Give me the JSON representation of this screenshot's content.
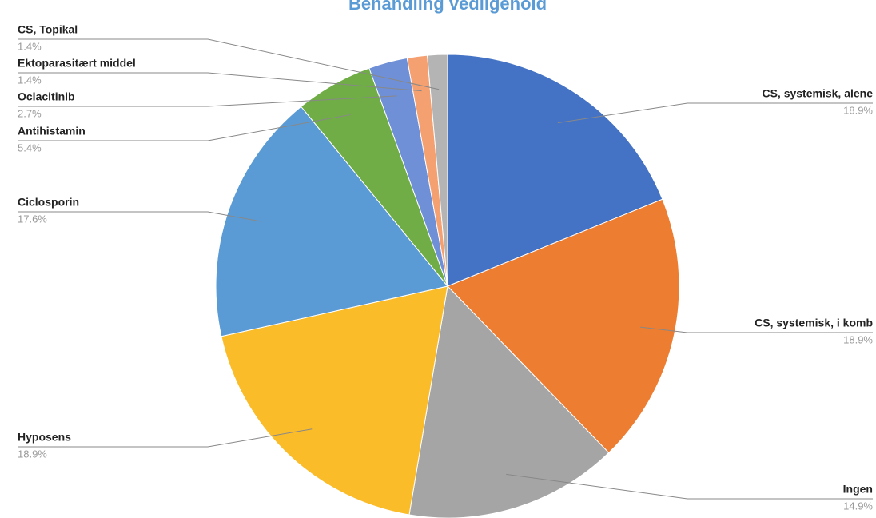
{
  "chart_data": {
    "type": "pie",
    "title": "Behandling vedligehold",
    "categories": [
      "CS, systemisk, alene",
      "CS, systemisk, i komb",
      "Ingen",
      "Hyposens",
      "Ciclosporin",
      "Antihistamin",
      "Oclacitinib",
      "Ektoparasitært middel",
      "CS, Topikal"
    ],
    "values": [
      18.9,
      18.9,
      14.9,
      18.9,
      17.6,
      5.4,
      2.7,
      1.4,
      1.4
    ],
    "value_labels": [
      "18.9%",
      "18.9%",
      "14.9%",
      "18.9%",
      "17.6%",
      "5.4%",
      "2.7%",
      "1.4%",
      "1.4%"
    ],
    "colors": [
      "#4472c4",
      "#ed7d31",
      "#a5a5a5",
      "#fbbc2a",
      "#5b9bd5",
      "#70ad47",
      "#6f8fd6",
      "#f4a070",
      "#b4b4b4"
    ]
  }
}
